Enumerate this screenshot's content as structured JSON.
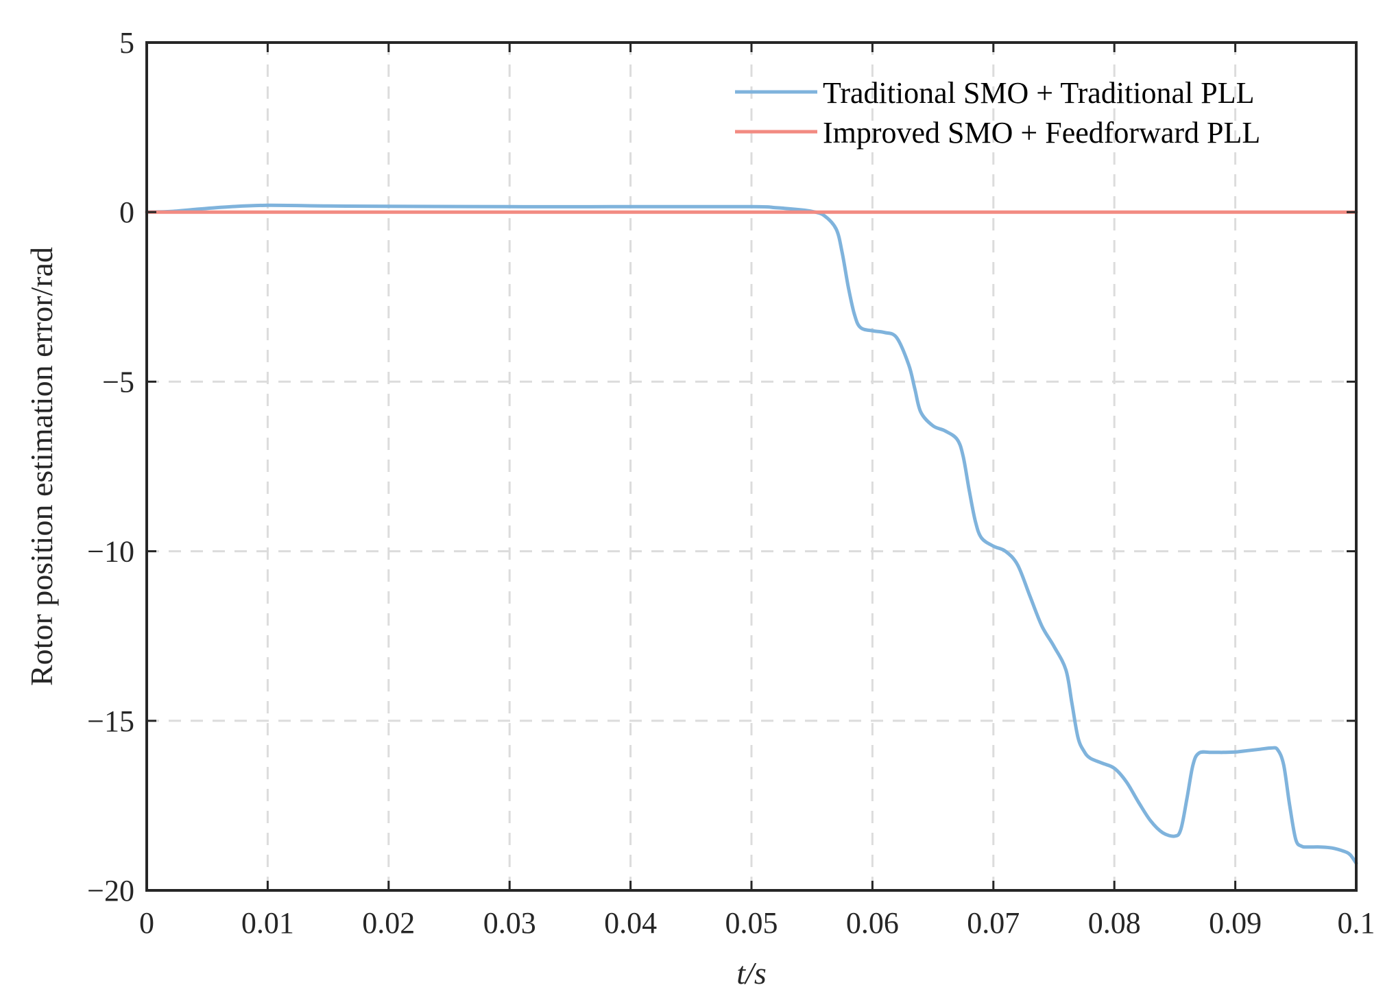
{
  "chart_data": {
    "type": "line",
    "title": "",
    "xlabel": "t/s",
    "ylabel": "Rotor position estimation error/rad",
    "xlim": [
      0,
      0.1
    ],
    "ylim": [
      -20,
      5
    ],
    "x_ticks": [
      0,
      0.01,
      0.02,
      0.03,
      0.04,
      0.05,
      0.06,
      0.07,
      0.08,
      0.09,
      0.1
    ],
    "x_tick_labels": [
      "0",
      "0.01",
      "0.02",
      "0.03",
      "0.04",
      "0.05",
      "0.06",
      "0.07",
      "0.08",
      "0.09",
      "0.1"
    ],
    "y_ticks": [
      5,
      0,
      -5,
      -10,
      -15,
      -20
    ],
    "y_tick_labels": [
      "5",
      "0",
      "−5",
      "−10",
      "−15",
      "−20"
    ],
    "grid": true,
    "legend_position": "top-right",
    "series": [
      {
        "name": "Traditional SMO + Traditional PLL",
        "color": "#7fb3dc",
        "points": [
          [
            0.0,
            0.0
          ],
          [
            0.002,
            0.02
          ],
          [
            0.004,
            0.08
          ],
          [
            0.007,
            0.16
          ],
          [
            0.01,
            0.2
          ],
          [
            0.015,
            0.18
          ],
          [
            0.02,
            0.17
          ],
          [
            0.03,
            0.16
          ],
          [
            0.04,
            0.16
          ],
          [
            0.05,
            0.16
          ],
          [
            0.052,
            0.13
          ],
          [
            0.054,
            0.07
          ],
          [
            0.055,
            0.02
          ],
          [
            0.056,
            -0.1
          ],
          [
            0.057,
            -0.5
          ],
          [
            0.0575,
            -1.2
          ],
          [
            0.058,
            -2.2
          ],
          [
            0.0585,
            -3.0
          ],
          [
            0.059,
            -3.4
          ],
          [
            0.06,
            -3.5
          ],
          [
            0.061,
            -3.55
          ],
          [
            0.062,
            -3.7
          ],
          [
            0.063,
            -4.5
          ],
          [
            0.0635,
            -5.2
          ],
          [
            0.064,
            -5.9
          ],
          [
            0.065,
            -6.3
          ],
          [
            0.066,
            -6.45
          ],
          [
            0.067,
            -6.7
          ],
          [
            0.0675,
            -7.2
          ],
          [
            0.068,
            -8.2
          ],
          [
            0.0685,
            -9.1
          ],
          [
            0.069,
            -9.6
          ],
          [
            0.07,
            -9.85
          ],
          [
            0.071,
            -10.0
          ],
          [
            0.072,
            -10.4
          ],
          [
            0.073,
            -11.3
          ],
          [
            0.074,
            -12.2
          ],
          [
            0.075,
            -12.8
          ],
          [
            0.076,
            -13.5
          ],
          [
            0.0765,
            -14.5
          ],
          [
            0.077,
            -15.5
          ],
          [
            0.0775,
            -15.9
          ],
          [
            0.078,
            -16.1
          ],
          [
            0.079,
            -16.25
          ],
          [
            0.08,
            -16.4
          ],
          [
            0.081,
            -16.8
          ],
          [
            0.082,
            -17.4
          ],
          [
            0.083,
            -17.95
          ],
          [
            0.084,
            -18.3
          ],
          [
            0.085,
            -18.4
          ],
          [
            0.0855,
            -18.2
          ],
          [
            0.086,
            -17.3
          ],
          [
            0.0865,
            -16.3
          ],
          [
            0.087,
            -15.95
          ],
          [
            0.088,
            -15.93
          ],
          [
            0.089,
            -15.93
          ],
          [
            0.09,
            -15.92
          ],
          [
            0.091,
            -15.88
          ],
          [
            0.092,
            -15.84
          ],
          [
            0.093,
            -15.8
          ],
          [
            0.0935,
            -15.85
          ],
          [
            0.094,
            -16.3
          ],
          [
            0.0945,
            -17.5
          ],
          [
            0.095,
            -18.5
          ],
          [
            0.0955,
            -18.7
          ],
          [
            0.096,
            -18.72
          ],
          [
            0.097,
            -18.72
          ],
          [
            0.098,
            -18.75
          ],
          [
            0.099,
            -18.85
          ],
          [
            0.0995,
            -18.95
          ],
          [
            0.1,
            -19.2
          ]
        ]
      },
      {
        "name": "Improved SMO + Feedforward PLL",
        "color": "#f28b82",
        "points": [
          [
            0.0,
            0.0
          ],
          [
            0.1,
            0.0
          ]
        ]
      }
    ]
  }
}
